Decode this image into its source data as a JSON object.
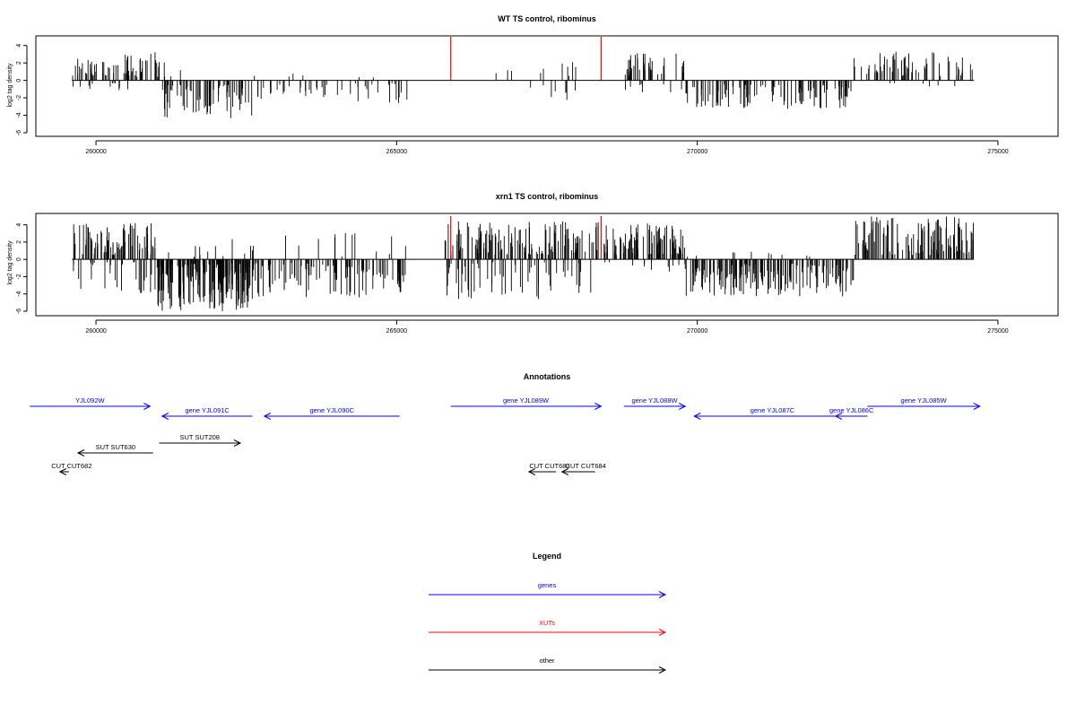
{
  "chart_data": [
    {
      "type": "bar",
      "title": "WT TS control, ribominus",
      "xlabel": "",
      "ylabel": "log2 tag density",
      "xlim": [
        259000,
        276000
      ],
      "ylim": [
        -6,
        5
      ],
      "x_ticks": [
        260000,
        265000,
        270000,
        275000
      ],
      "y_ticks": [
        -6,
        -4,
        -2,
        0,
        2,
        4
      ],
      "x_tick_labels": [
        "260000",
        "265000",
        "270000",
        "275000"
      ],
      "y_tick_labels": [
        "-6",
        "-4",
        "-2",
        "0",
        "2",
        "4"
      ],
      "baseline": {
        "from": 259600,
        "to": 274600
      },
      "markers": {
        "color": "#ff0000",
        "x": [
          265900,
          268400
        ],
        "y": 5
      },
      "density_segments": [
        {
          "from": 259600,
          "to": 260600,
          "sign": 1,
          "min": 0.5,
          "max": 3.0,
          "n": 45
        },
        {
          "from": 259600,
          "to": 260600,
          "sign": -1,
          "min": 0.3,
          "max": 1.5,
          "n": 12
        },
        {
          "from": 260600,
          "to": 261100,
          "sign": 1,
          "min": 0.4,
          "max": 3.3,
          "n": 22
        },
        {
          "from": 261100,
          "to": 261600,
          "sign": 1,
          "min": 0.3,
          "max": 2.2,
          "n": 4
        },
        {
          "from": 261100,
          "to": 262600,
          "sign": -1,
          "min": 0.5,
          "max": 4.4,
          "n": 70
        },
        {
          "from": 262600,
          "to": 265200,
          "sign": -1,
          "min": 0.3,
          "max": 2.6,
          "n": 45
        },
        {
          "from": 262600,
          "to": 265200,
          "sign": 1,
          "min": 0.3,
          "max": 0.8,
          "n": 6
        },
        {
          "from": 266200,
          "to": 268000,
          "sign": 1,
          "min": 0.5,
          "max": 2.6,
          "n": 10
        },
        {
          "from": 266800,
          "to": 268000,
          "sign": -1,
          "min": 0.5,
          "max": 3.0,
          "n": 8
        },
        {
          "from": 268800,
          "to": 269800,
          "sign": 1,
          "min": 0.5,
          "max": 3.2,
          "n": 40
        },
        {
          "from": 268800,
          "to": 269800,
          "sign": -1,
          "min": 0.3,
          "max": 1.5,
          "n": 8
        },
        {
          "from": 269800,
          "to": 272600,
          "sign": -1,
          "min": 0.5,
          "max": 3.4,
          "n": 110
        },
        {
          "from": 272600,
          "to": 274600,
          "sign": 1,
          "min": 0.5,
          "max": 3.3,
          "n": 60
        },
        {
          "from": 272600,
          "to": 274600,
          "sign": -1,
          "min": 0.3,
          "max": 0.8,
          "n": 6
        }
      ]
    },
    {
      "type": "bar",
      "title": "xrn1 TS control, ribominus",
      "xlabel": "",
      "ylabel": "log2 tag density",
      "xlim": [
        259000,
        276000
      ],
      "ylim": [
        -6,
        5
      ],
      "x_ticks": [
        260000,
        265000,
        270000,
        275000
      ],
      "y_ticks": [
        -6,
        -4,
        -2,
        0,
        2,
        4
      ],
      "x_tick_labels": [
        "260000",
        "265000",
        "270000",
        "275000"
      ],
      "y_tick_labels": [
        "-6",
        "-4",
        "-2",
        "0",
        "2",
        "4"
      ],
      "baseline": {
        "from": 259600,
        "to": 274600
      },
      "markers": {
        "color": "#ff0000",
        "x": [
          265900,
          268400
        ],
        "y": 5
      },
      "density_segments": [
        {
          "from": 259600,
          "to": 261000,
          "sign": 1,
          "min": 0.5,
          "max": 4.2,
          "n": 80
        },
        {
          "from": 259600,
          "to": 261000,
          "sign": -1,
          "min": 0.3,
          "max": 4.0,
          "n": 30
        },
        {
          "from": 261000,
          "to": 262600,
          "sign": -1,
          "min": 0.5,
          "max": 6.0,
          "n": 170
        },
        {
          "from": 261000,
          "to": 262600,
          "sign": 1,
          "min": 0.3,
          "max": 2.5,
          "n": 12
        },
        {
          "from": 262600,
          "to": 265200,
          "sign": -1,
          "min": 0.3,
          "max": 4.4,
          "n": 110
        },
        {
          "from": 262600,
          "to": 265200,
          "sign": 1,
          "min": 0.3,
          "max": 3.8,
          "n": 14
        },
        {
          "from": 265800,
          "to": 268400,
          "sign": 1,
          "min": 0.5,
          "max": 4.4,
          "n": 130
        },
        {
          "from": 265800,
          "to": 268400,
          "sign": -1,
          "min": 0.3,
          "max": 4.6,
          "n": 60
        },
        {
          "from": 268400,
          "to": 269800,
          "sign": 1,
          "min": 0.5,
          "max": 4.2,
          "n": 90
        },
        {
          "from": 268400,
          "to": 269800,
          "sign": -1,
          "min": 0.3,
          "max": 1.5,
          "n": 12
        },
        {
          "from": 269800,
          "to": 272600,
          "sign": -1,
          "min": 0.5,
          "max": 4.3,
          "n": 170
        },
        {
          "from": 269800,
          "to": 272600,
          "sign": 1,
          "min": 0.3,
          "max": 1.0,
          "n": 10
        },
        {
          "from": 272600,
          "to": 274600,
          "sign": 1,
          "min": 0.5,
          "max": 5.0,
          "n": 120
        }
      ]
    }
  ],
  "annotations": {
    "title": "Annotations",
    "xlim": [
      259000,
      276000
    ],
    "features": [
      {
        "label": "YJL092W",
        "start": 258900,
        "end": 260900,
        "dir": 1,
        "color": "#0000ff",
        "row": 0
      },
      {
        "label": "gene YJL091C",
        "start": 262600,
        "end": 261100,
        "dir": -1,
        "color": "#0000ff",
        "row": 1
      },
      {
        "label": "gene YJL090C",
        "start": 265050,
        "end": 262800,
        "dir": -1,
        "color": "#0000ff",
        "row": 1
      },
      {
        "label": "gene YJL089W",
        "start": 265900,
        "end": 268400,
        "dir": 1,
        "color": "#0000ff",
        "row": 0
      },
      {
        "label": "gene YJL088W",
        "start": 268780,
        "end": 269800,
        "dir": 1,
        "color": "#0000ff",
        "row": 0
      },
      {
        "label": "gene YJL087C",
        "start": 272550,
        "end": 269950,
        "dir": -1,
        "color": "#0000ff",
        "row": 1
      },
      {
        "label": "gene YJL086C",
        "start": 272830,
        "end": 272300,
        "dir": -1,
        "color": "#0000ff",
        "row": 1
      },
      {
        "label": "gene YJL085W",
        "start": 272830,
        "end": 274700,
        "dir": 1,
        "color": "#0000ff",
        "row": 0
      },
      {
        "label": "SUT SUT630",
        "start": 260950,
        "end": 259700,
        "dir": -1,
        "color": "#000000",
        "row": 3
      },
      {
        "label": "SUT SUT208",
        "start": 261050,
        "end": 262400,
        "dir": 1,
        "color": "#000000",
        "row": 2
      },
      {
        "label": "CUT CUT682",
        "start": 259550,
        "end": 259400,
        "dir": -1,
        "color": "#000000",
        "row": 4
      },
      {
        "label": "CUT CUT683",
        "start": 267650,
        "end": 267200,
        "dir": -1,
        "color": "#000000",
        "row": 4
      },
      {
        "label": "CUT CUT684",
        "start": 268300,
        "end": 267750,
        "dir": -1,
        "color": "#000000",
        "row": 4
      }
    ]
  },
  "legend": {
    "title": "Legend",
    "items": [
      {
        "label": "genes",
        "color": "#0000ff"
      },
      {
        "label": "XUTs",
        "color": "#ff0000"
      },
      {
        "label": "other",
        "color": "#000000"
      }
    ]
  }
}
